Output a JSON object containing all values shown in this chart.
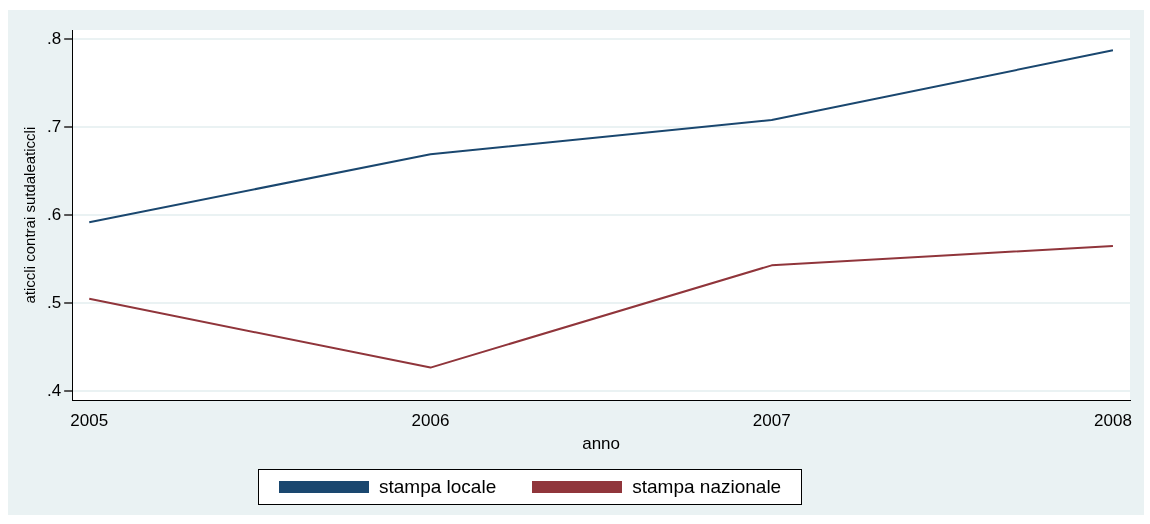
{
  "chart_data": {
    "type": "line",
    "xlabel": "anno",
    "ylabel": "aticcli contrai sutdaleaticcli",
    "x": [
      2005,
      2006,
      2007,
      2008
    ],
    "series": [
      {
        "name": "stampa locale",
        "color": "#1a476f",
        "values": [
          0.592,
          0.669,
          0.708,
          0.787
        ]
      },
      {
        "name": "stampa nazionale",
        "color": "#90353b",
        "values": [
          0.505,
          0.427,
          0.543,
          0.565
        ]
      }
    ],
    "xlim": [
      2004.95,
      2008.05
    ],
    "xticks": [
      2005,
      2006,
      2007,
      2008
    ],
    "ylim": [
      0.39,
      0.81
    ],
    "yticks": [
      {
        "value": 0.4,
        "label": ".4"
      },
      {
        "value": 0.5,
        "label": ".5"
      },
      {
        "value": 0.6,
        "label": ".6"
      },
      {
        "value": 0.7,
        "label": ".7"
      },
      {
        "value": 0.8,
        "label": ".8"
      }
    ],
    "grid": "y",
    "legend": "bottom",
    "marker": "none",
    "line_style": "solid"
  }
}
